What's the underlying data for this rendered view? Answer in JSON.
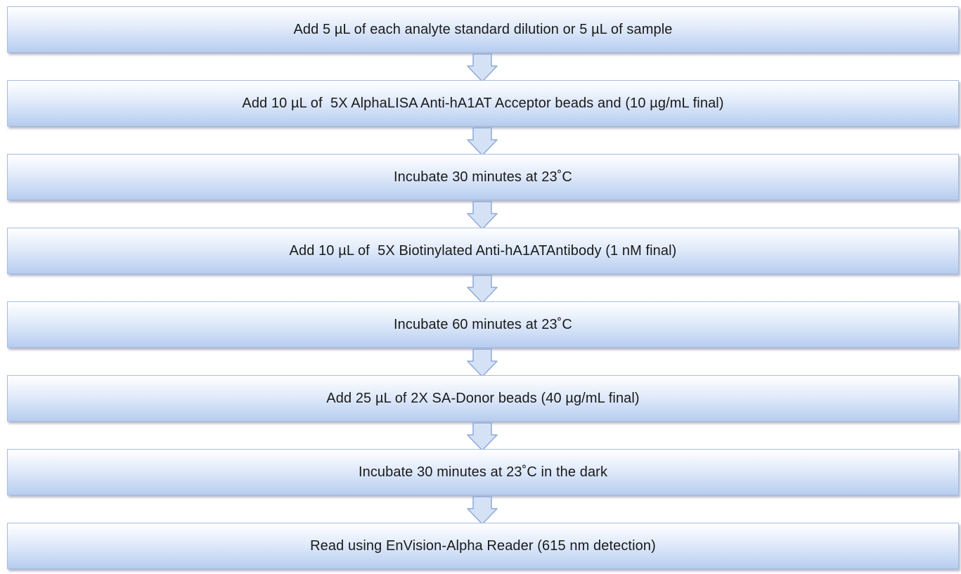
{
  "colors": {
    "box_fill_top": "#ffffff",
    "box_fill_bottom": "#b7cdf0",
    "box_border": "#a6bde3",
    "arrow_fill": "#d5e2f6",
    "arrow_stroke": "#8ea9d8",
    "text": "#1a1a1a"
  },
  "arrow_icon": "down-chevron-arrow-icon",
  "steps": [
    {
      "label": "Add 5 µL of each analyte standard dilution or 5 µL of sample"
    },
    {
      "label": "Add 10 µL of  5X AlphaLISA Anti-hA1AT Acceptor beads and (10 µg/mL final)"
    },
    {
      "label": "Incubate 30 minutes at 23˚C"
    },
    {
      "label": "Add 10 µL of  5X Biotinylated Anti-hA1ATAntibody (1 nM final)"
    },
    {
      "label": "Incubate 60 minutes at 23˚C"
    },
    {
      "label": "Add 25 µL of 2X SA-Donor beads (40 µg/mL final)"
    },
    {
      "label": "Incubate 30 minutes at 23˚C in the dark"
    },
    {
      "label": "Read using EnVision-Alpha Reader (615 nm detection)"
    }
  ]
}
